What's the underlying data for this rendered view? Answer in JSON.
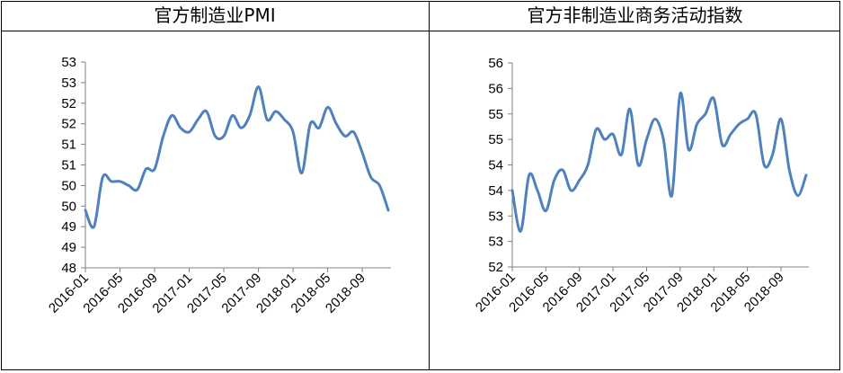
{
  "chart_data": [
    {
      "type": "line",
      "title": "官方制造业PMI",
      "xlabel": "",
      "ylabel": "",
      "ylim": [
        48,
        53
      ],
      "yticks": [
        "53",
        "53",
        "52",
        "52",
        "51",
        "51",
        "50",
        "50",
        "49",
        "49",
        "48"
      ],
      "xticks": [
        "2016-01",
        "2016-05",
        "2016-09",
        "2017-01",
        "2017-05",
        "2017-09",
        "2018-01",
        "2018-05",
        "2018-09"
      ],
      "grid": false,
      "color": "#4f81bd",
      "x": [
        "2016-01",
        "2016-02",
        "2016-03",
        "2016-04",
        "2016-05",
        "2016-06",
        "2016-07",
        "2016-08",
        "2016-09",
        "2016-10",
        "2016-11",
        "2016-12",
        "2017-01",
        "2017-02",
        "2017-03",
        "2017-04",
        "2017-05",
        "2017-06",
        "2017-07",
        "2017-08",
        "2017-09",
        "2017-10",
        "2017-11",
        "2017-12",
        "2018-01",
        "2018-02",
        "2018-03",
        "2018-04",
        "2018-05",
        "2018-06",
        "2018-07",
        "2018-08",
        "2018-09",
        "2018-10",
        "2018-11",
        "2018-12"
      ],
      "values": [
        49.4,
        49.0,
        50.2,
        50.1,
        50.1,
        50.0,
        49.9,
        50.4,
        50.4,
        51.2,
        51.7,
        51.4,
        51.3,
        51.6,
        51.8,
        51.2,
        51.2,
        51.7,
        51.4,
        51.7,
        52.4,
        51.6,
        51.8,
        51.6,
        51.3,
        50.3,
        51.5,
        51.4,
        51.9,
        51.5,
        51.2,
        51.3,
        50.8,
        50.2,
        50.0,
        49.4
      ]
    },
    {
      "type": "line",
      "title": "官方非制造业商务活动指数",
      "xlabel": "",
      "ylabel": "",
      "ylim": [
        52,
        56
      ],
      "yticks": [
        "56",
        "56",
        "55",
        "55",
        "54",
        "54",
        "53",
        "53",
        "52"
      ],
      "xticks": [
        "2016-01",
        "2016-05",
        "2016-09",
        "2017-01",
        "2017-05",
        "2017-09",
        "2018-01",
        "2018-05",
        "2018-09"
      ],
      "grid": false,
      "color": "#4f81bd",
      "x": [
        "2016-01",
        "2016-02",
        "2016-03",
        "2016-04",
        "2016-05",
        "2016-06",
        "2016-07",
        "2016-08",
        "2016-09",
        "2016-10",
        "2016-11",
        "2016-12",
        "2017-01",
        "2017-02",
        "2017-03",
        "2017-04",
        "2017-05",
        "2017-06",
        "2017-07",
        "2017-08",
        "2017-09",
        "2017-10",
        "2017-11",
        "2017-12",
        "2018-01",
        "2018-02",
        "2018-03",
        "2018-04",
        "2018-05",
        "2018-06",
        "2018-07",
        "2018-08",
        "2018-09",
        "2018-10",
        "2018-11",
        "2018-12"
      ],
      "values": [
        53.5,
        52.7,
        53.8,
        53.5,
        53.1,
        53.7,
        53.9,
        53.5,
        53.7,
        54.0,
        54.7,
        54.5,
        54.6,
        54.2,
        55.1,
        54.0,
        54.5,
        54.9,
        54.5,
        53.4,
        55.4,
        54.3,
        54.8,
        55.0,
        55.3,
        54.4,
        54.6,
        54.8,
        54.9,
        55.0,
        54.0,
        54.2,
        54.9,
        53.9,
        53.4,
        53.8
      ]
    }
  ]
}
